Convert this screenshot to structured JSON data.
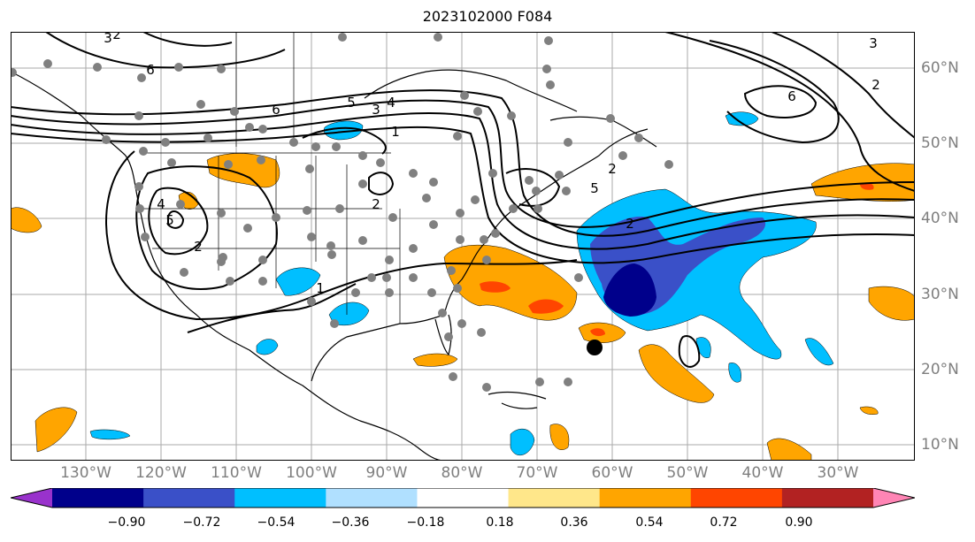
{
  "title": "2023102000 F084",
  "lat_labels": [
    "60°N",
    "50°N",
    "40°N",
    "30°N",
    "20°N",
    "10°N"
  ],
  "lon_labels": [
    "130°W",
    "120°W",
    "110°W",
    "100°W",
    "90°W",
    "80°W",
    "70°W",
    "60°W",
    "50°W",
    "40°W",
    "30°W"
  ],
  "colorbar": {
    "ticks": [
      "−0.90",
      "−0.72",
      "−0.54",
      "−0.36",
      "−0.18",
      "0.18",
      "0.36",
      "0.54",
      "0.72",
      "0.90"
    ],
    "colors": [
      "#9932cc",
      "#00008b",
      "#3a50c8",
      "#00bfff",
      "#b0e0ff",
      "#ffffff",
      "#ffe78a",
      "#ffa500",
      "#ff4500",
      "#b22222",
      "#ff85b5"
    ]
  },
  "contour_labels": [
    "6",
    "6",
    "5",
    "3",
    "4",
    "1",
    "5",
    "2",
    "2",
    "2",
    "2",
    "3",
    "2",
    "6",
    "3",
    "2",
    "1",
    "5",
    "4"
  ],
  "shading_colors": {
    "dark_blue": "#00008b",
    "mid_blue": "#3a50c8",
    "light_blue": "#00bfff",
    "orange": "#ffa500",
    "red_orange": "#ff4500"
  },
  "grid": true,
  "marker": "storm-center"
}
